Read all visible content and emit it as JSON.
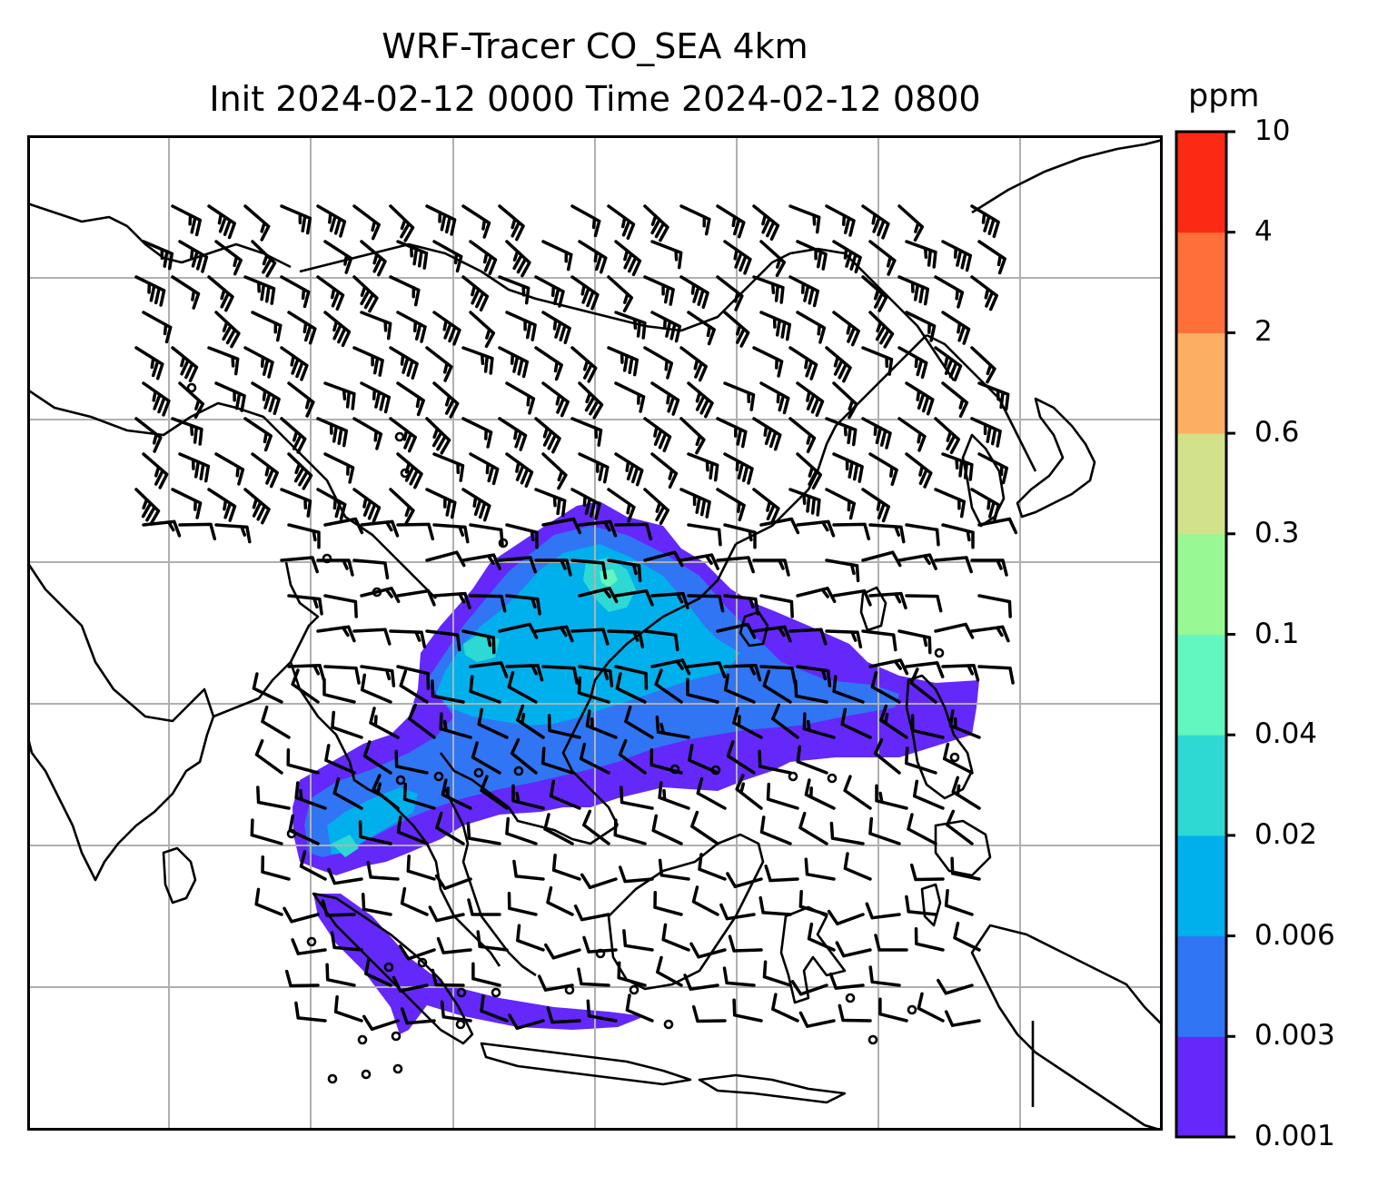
{
  "title": {
    "line1": "WRF-Tracer CO_SEA 4km",
    "line2": "Init 2024-02-12 0000 Time 2024-02-12 0800"
  },
  "colorbar": {
    "unit": "ppm",
    "levels": [
      "0.001",
      "0.003",
      "0.006",
      "0.02",
      "0.04",
      "0.1",
      "0.3",
      "0.6",
      "2",
      "4",
      "10"
    ],
    "colors": [
      "#6428fa",
      "#3075f4",
      "#00b0ec",
      "#2ed9d4",
      "#62f7c0",
      "#97f894",
      "#d2e28a",
      "#fcaf62",
      "#fe6f3a",
      "#fc2a14"
    ]
  },
  "map": {
    "frame_color": "#000000",
    "gridline_color": "#b0b0b0",
    "coastline_color": "#000000",
    "wind_barb_color": "#000000",
    "gridlines": true,
    "overlay": "wind barbs"
  }
}
